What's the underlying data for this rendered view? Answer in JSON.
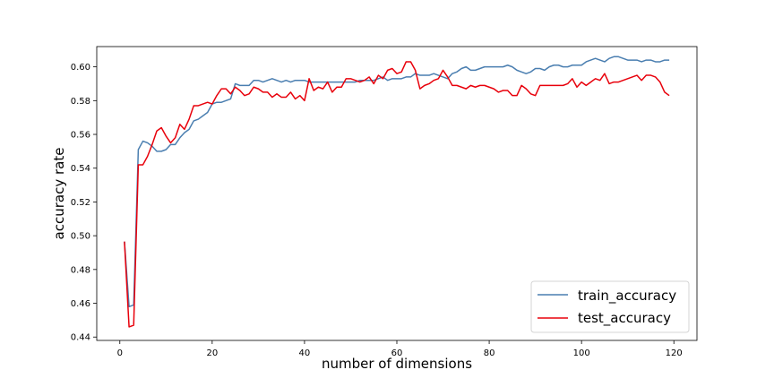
{
  "chart_data": {
    "type": "line",
    "title": "",
    "xlabel": "number of dimensions",
    "ylabel": "accuracy rate",
    "xlim": [
      -5,
      125
    ],
    "ylim": [
      0.438,
      0.612
    ],
    "xticks": [
      0,
      20,
      40,
      60,
      80,
      100,
      120
    ],
    "yticks": [
      0.44,
      0.46,
      0.48,
      0.5,
      0.52,
      0.54,
      0.56,
      0.58,
      0.6
    ],
    "ytick_labels": [
      "0.44",
      "0.46",
      "0.48",
      "0.50",
      "0.52",
      "0.54",
      "0.56",
      "0.58",
      "0.60"
    ],
    "grid": false,
    "legend_position": "lower-right",
    "x": [
      1,
      2,
      3,
      4,
      5,
      6,
      7,
      8,
      9,
      10,
      11,
      12,
      13,
      14,
      15,
      16,
      17,
      18,
      19,
      20,
      21,
      22,
      23,
      24,
      25,
      26,
      27,
      28,
      29,
      30,
      31,
      32,
      33,
      34,
      35,
      36,
      37,
      38,
      39,
      40,
      41,
      42,
      43,
      44,
      45,
      46,
      47,
      48,
      49,
      50,
      51,
      52,
      53,
      54,
      55,
      56,
      57,
      58,
      59,
      60,
      61,
      62,
      63,
      64,
      65,
      66,
      67,
      68,
      69,
      70,
      71,
      72,
      73,
      74,
      75,
      76,
      77,
      78,
      79,
      80,
      81,
      82,
      83,
      84,
      85,
      86,
      87,
      88,
      89,
      90,
      91,
      92,
      93,
      94,
      95,
      96,
      97,
      98,
      99,
      100,
      101,
      102,
      103,
      104,
      105,
      106,
      107,
      108,
      109,
      110,
      111,
      112,
      113,
      114,
      115,
      116,
      117,
      118,
      119
    ],
    "series": [
      {
        "name": "train_accuracy",
        "color": "#4a7eb0",
        "values": [
          0.4965,
          0.458,
          0.459,
          0.551,
          0.556,
          0.555,
          0.553,
          0.55,
          0.55,
          0.551,
          0.554,
          0.554,
          0.558,
          0.561,
          0.563,
          0.568,
          0.569,
          0.571,
          0.573,
          0.578,
          0.579,
          0.579,
          0.58,
          0.581,
          0.59,
          0.589,
          0.589,
          0.589,
          0.592,
          0.592,
          0.591,
          0.592,
          0.593,
          0.592,
          0.591,
          0.592,
          0.591,
          0.592,
          0.592,
          0.592,
          0.591,
          0.591,
          0.591,
          0.591,
          0.591,
          0.591,
          0.591,
          0.591,
          0.591,
          0.591,
          0.591,
          0.592,
          0.592,
          0.592,
          0.592,
          0.593,
          0.594,
          0.592,
          0.593,
          0.593,
          0.593,
          0.594,
          0.594,
          0.596,
          0.595,
          0.595,
          0.595,
          0.596,
          0.595,
          0.594,
          0.593,
          0.596,
          0.597,
          0.599,
          0.6,
          0.598,
          0.598,
          0.599,
          0.6,
          0.6,
          0.6,
          0.6,
          0.6,
          0.601,
          0.6,
          0.598,
          0.597,
          0.596,
          0.597,
          0.599,
          0.599,
          0.598,
          0.6,
          0.601,
          0.601,
          0.6,
          0.6,
          0.601,
          0.601,
          0.601,
          0.603,
          0.604,
          0.605,
          0.604,
          0.603,
          0.605,
          0.606,
          0.606,
          0.605,
          0.604,
          0.604,
          0.604,
          0.603,
          0.604,
          0.604,
          0.603,
          0.603,
          0.604,
          0.604
        ]
      },
      {
        "name": "test_accuracy",
        "color": "#e8000b",
        "values": [
          0.4965,
          0.446,
          0.447,
          0.542,
          0.542,
          0.547,
          0.554,
          0.562,
          0.564,
          0.559,
          0.555,
          0.558,
          0.566,
          0.563,
          0.569,
          0.577,
          0.577,
          0.578,
          0.579,
          0.578,
          0.583,
          0.587,
          0.587,
          0.584,
          0.588,
          0.586,
          0.583,
          0.584,
          0.588,
          0.587,
          0.585,
          0.585,
          0.582,
          0.584,
          0.582,
          0.582,
          0.585,
          0.581,
          0.583,
          0.58,
          0.593,
          0.586,
          0.588,
          0.587,
          0.591,
          0.585,
          0.588,
          0.588,
          0.593,
          0.593,
          0.592,
          0.591,
          0.592,
          0.594,
          0.59,
          0.595,
          0.593,
          0.598,
          0.599,
          0.596,
          0.597,
          0.603,
          0.603,
          0.598,
          0.587,
          0.589,
          0.59,
          0.592,
          0.593,
          0.598,
          0.594,
          0.589,
          0.589,
          0.588,
          0.587,
          0.589,
          0.588,
          0.589,
          0.589,
          0.588,
          0.587,
          0.585,
          0.586,
          0.586,
          0.583,
          0.583,
          0.589,
          0.587,
          0.584,
          0.583,
          0.589,
          0.589,
          0.589,
          0.589,
          0.589,
          0.589,
          0.59,
          0.593,
          0.588,
          0.591,
          0.589,
          0.591,
          0.593,
          0.592,
          0.596,
          0.59,
          0.591,
          0.591,
          0.592,
          0.593,
          0.594,
          0.595,
          0.592,
          0.595,
          0.595,
          0.594,
          0.591,
          0.585,
          0.583
        ]
      }
    ]
  }
}
